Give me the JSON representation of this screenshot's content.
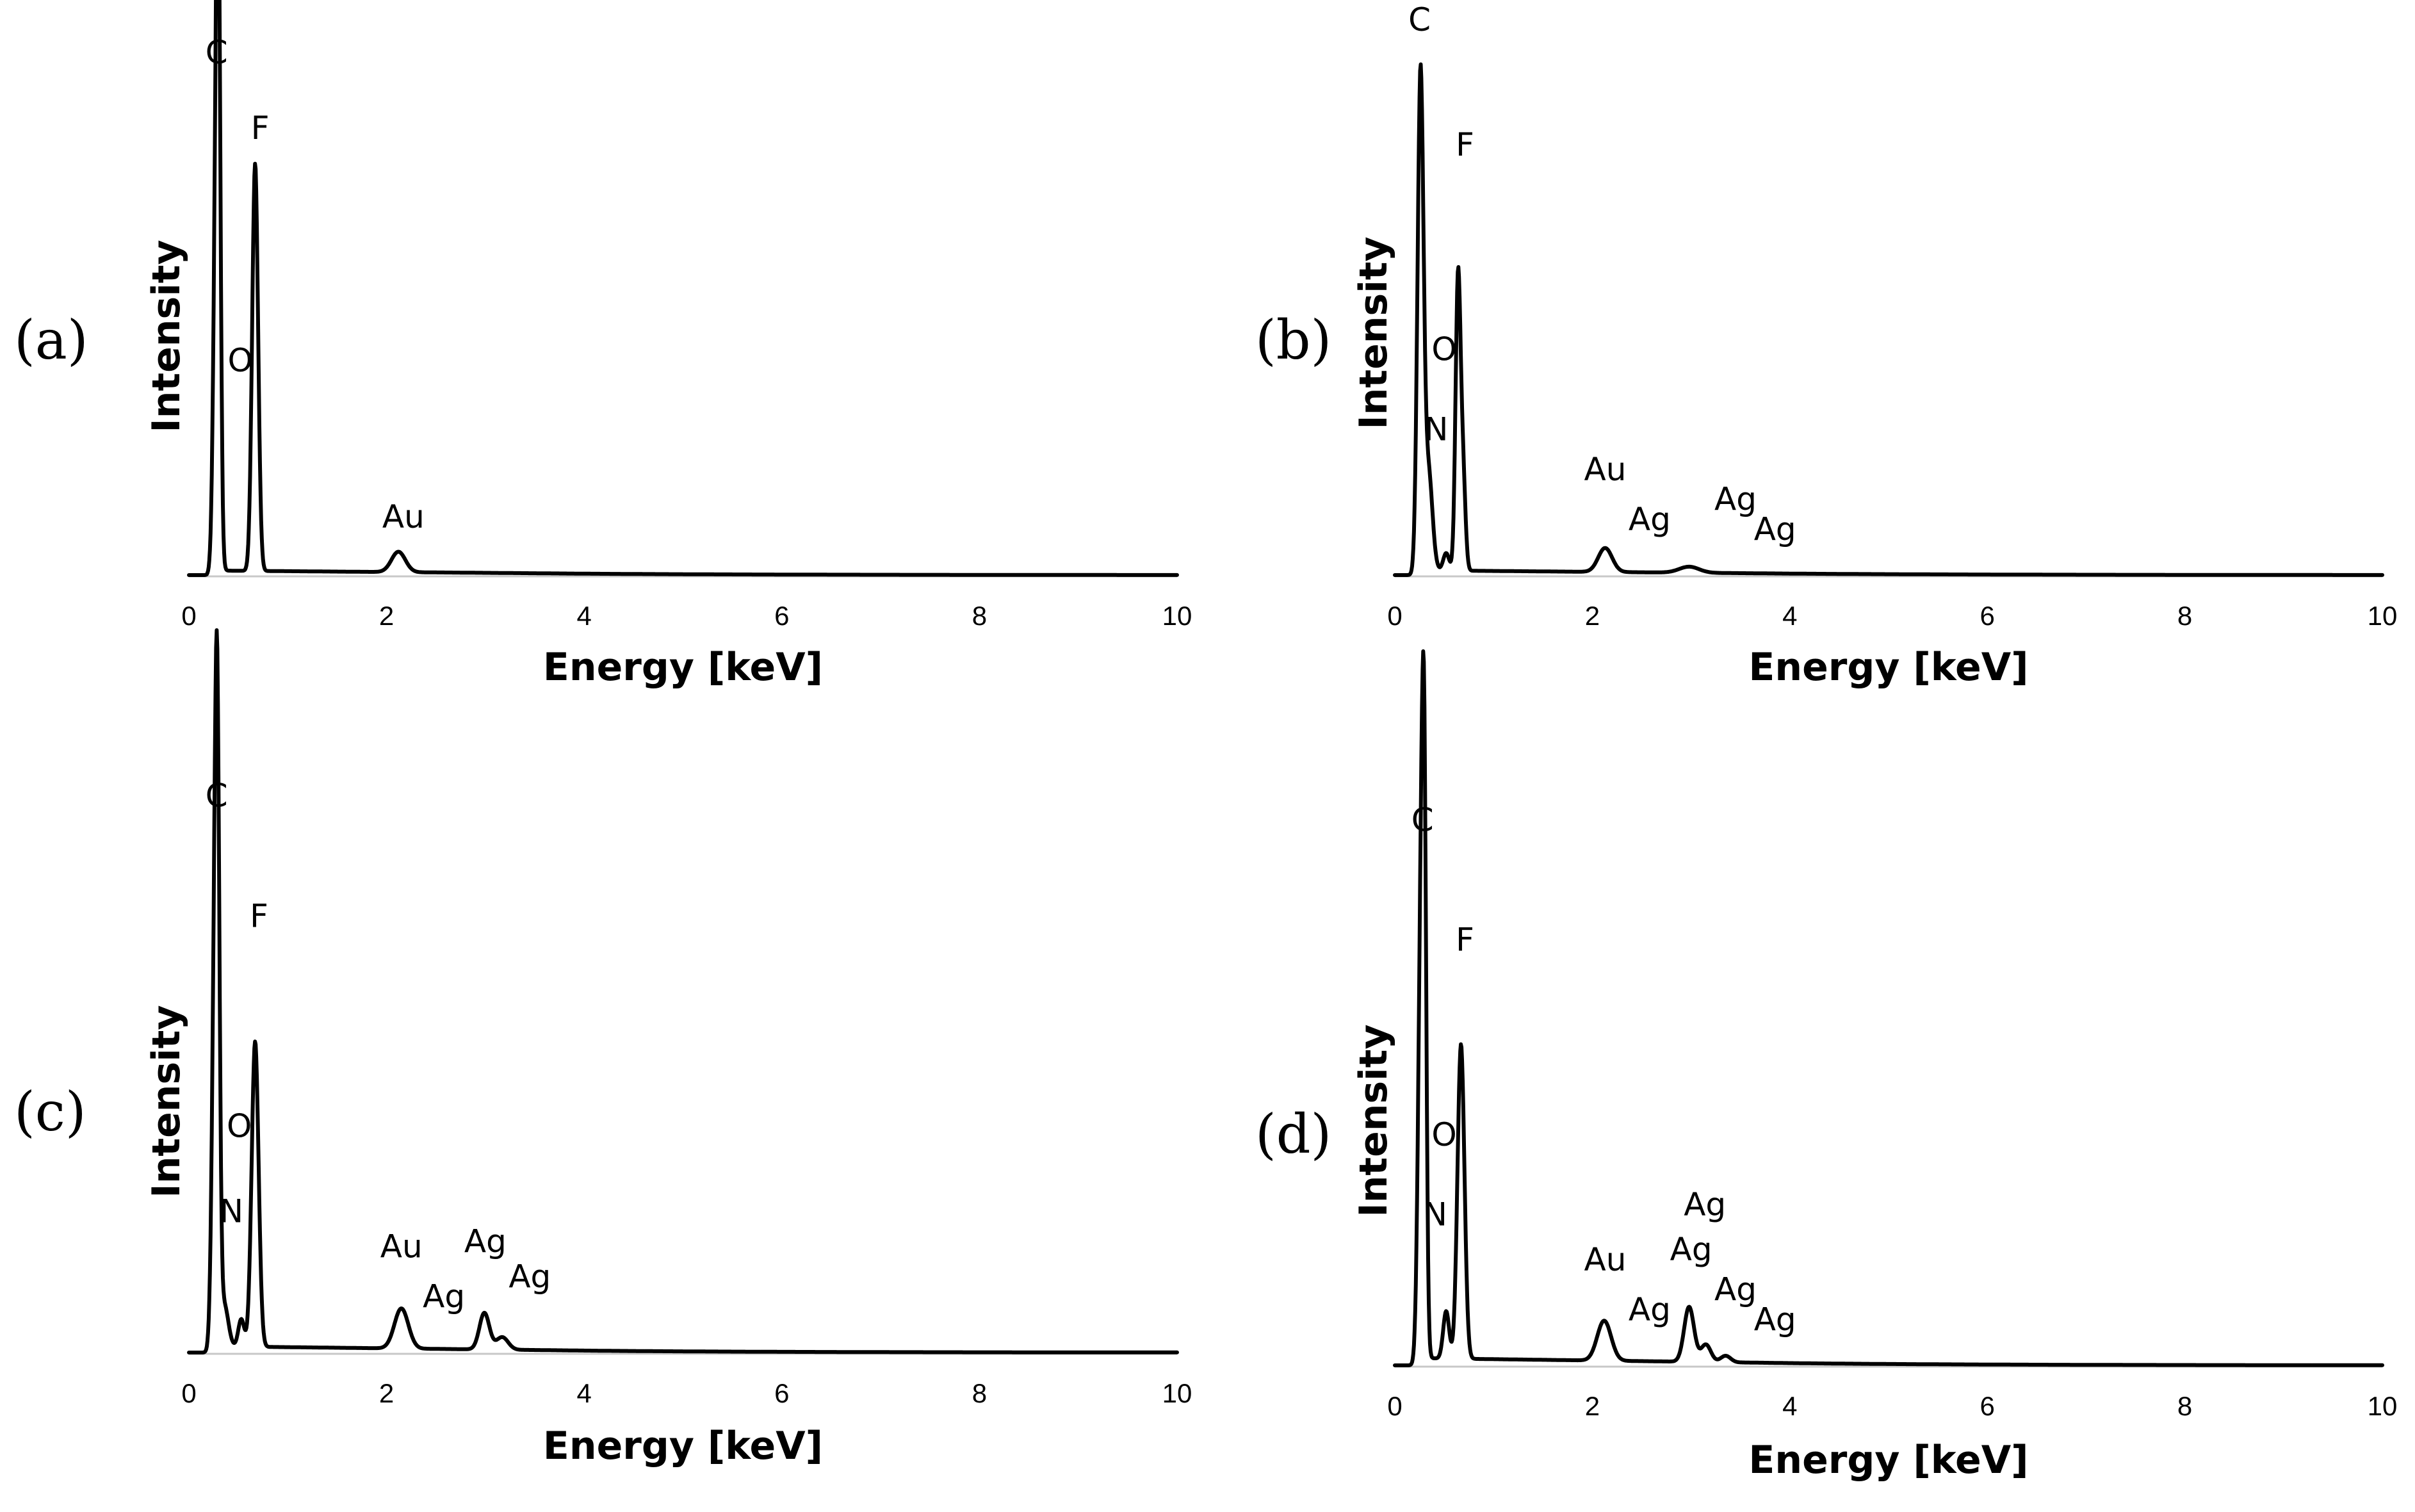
{
  "chart_data": [
    {
      "type": "line",
      "panel_label": "(a)",
      "xlabel": "Energy [keV]",
      "ylabel": "Intensity",
      "xlim": [
        0,
        10
      ],
      "ylim": [
        0,
        100
      ],
      "xticks": [
        "0",
        "2",
        "4",
        "6",
        "8",
        "10"
      ],
      "grid": false,
      "legend": "none",
      "peaks": [
        {
          "x": 0.28,
          "y": 94,
          "w": 0.028
        },
        {
          "x": 0.3,
          "y": 76,
          "w": 0.02
        },
        {
          "x": 0.67,
          "y": 86,
          "w": 0.03
        },
        {
          "x": 2.12,
          "y": 4.3,
          "w": 0.07
        }
      ],
      "baseline": 1.0,
      "baseline_end": 4.0,
      "annotations": [
        {
          "text": "C",
          "x": 0.28,
          "y": 108
        },
        {
          "text": "F",
          "x": 0.72,
          "y": 92
        },
        {
          "text": "O",
          "x": 0.52,
          "y": 43
        },
        {
          "text": "Au",
          "x": 2.17,
          "y": 10
        }
      ]
    },
    {
      "type": "line",
      "panel_label": "(b)",
      "xlabel": "Energy [keV]",
      "ylabel": "Intensity",
      "xlim": [
        0,
        10
      ],
      "ylim": [
        0,
        100
      ],
      "xticks": [
        "0",
        "2",
        "4",
        "6",
        "8",
        "10"
      ],
      "grid": false,
      "legend": "none",
      "peaks": [
        {
          "x": 0.26,
          "y": 99,
          "w": 0.03
        },
        {
          "x": 0.34,
          "y": 20,
          "w": 0.04
        },
        {
          "x": 0.52,
          "y": 3.5,
          "w": 0.03
        },
        {
          "x": 0.64,
          "y": 58,
          "w": 0.025
        },
        {
          "x": 0.69,
          "y": 19,
          "w": 0.025
        },
        {
          "x": 2.13,
          "y": 4.8,
          "w": 0.07
        },
        {
          "x": 2.98,
          "y": 1.2,
          "w": 0.1
        }
      ],
      "baseline": 1.0,
      "baseline_end": 4.0,
      "annotations": [
        {
          "text": "C",
          "x": 0.25,
          "y": 109
        },
        {
          "text": "F",
          "x": 0.71,
          "y": 84
        },
        {
          "text": "O",
          "x": 0.5,
          "y": 43
        },
        {
          "text": "N",
          "x": 0.42,
          "y": 27
        },
        {
          "text": "Au",
          "x": 2.13,
          "y": 19
        },
        {
          "text": "Ag",
          "x": 2.58,
          "y": 9
        },
        {
          "text": "Ag",
          "x": 3.45,
          "y": 13
        },
        {
          "text": "Ag",
          "x": 3.85,
          "y": 7
        }
      ]
    },
    {
      "type": "line",
      "panel_label": "(c)",
      "xlabel": "Energy [keV]",
      "ylabel": "Intensity",
      "xlim": [
        0,
        10
      ],
      "ylim": [
        0,
        100
      ],
      "xticks": [
        "0",
        "2",
        "4",
        "6",
        "8",
        "10"
      ],
      "grid": false,
      "legend": "none",
      "peaks": [
        {
          "x": 0.27,
          "y": 99,
          "w": 0.03
        },
        {
          "x": 0.29,
          "y": 55,
          "w": 0.02
        },
        {
          "x": 0.36,
          "y": 8,
          "w": 0.04
        },
        {
          "x": 0.53,
          "y": 5.5,
          "w": 0.03
        },
        {
          "x": 0.67,
          "y": 61,
          "w": 0.035
        },
        {
          "x": 2.15,
          "y": 8,
          "w": 0.07
        },
        {
          "x": 2.99,
          "y": 7.3,
          "w": 0.05
        },
        {
          "x": 3.17,
          "y": 2.5,
          "w": 0.06
        }
      ],
      "baseline": 1.3,
      "baseline_end": 4.0,
      "annotations": [
        {
          "text": "C",
          "x": 0.28,
          "y": 109
        },
        {
          "text": "F",
          "x": 0.71,
          "y": 85
        },
        {
          "text": "O",
          "x": 0.51,
          "y": 43
        },
        {
          "text": "N",
          "x": 0.43,
          "y": 26
        },
        {
          "text": "Au",
          "x": 2.15,
          "y": 19
        },
        {
          "text": "Ag",
          "x": 2.58,
          "y": 9
        },
        {
          "text": "Ag",
          "x": 3.0,
          "y": 20
        },
        {
          "text": "Ag",
          "x": 3.45,
          "y": 13
        }
      ]
    },
    {
      "type": "line",
      "panel_label": "(d)",
      "xlabel": "Energy [keV]",
      "ylabel": "Intensity",
      "xlim": [
        0,
        10
      ],
      "ylim": [
        0,
        100
      ],
      "xticks": [
        "0",
        "2",
        "4",
        "6",
        "8",
        "10"
      ],
      "grid": false,
      "legend": "none",
      "peaks": [
        {
          "x": 0.27,
          "y": 100,
          "w": 0.03
        },
        {
          "x": 0.3,
          "y": 70,
          "w": 0.02
        },
        {
          "x": 0.52,
          "y": 9.5,
          "w": 0.03
        },
        {
          "x": 0.67,
          "y": 63,
          "w": 0.035
        },
        {
          "x": 2.12,
          "y": 8,
          "w": 0.07
        },
        {
          "x": 2.98,
          "y": 11,
          "w": 0.05
        },
        {
          "x": 3.15,
          "y": 3.5,
          "w": 0.05
        },
        {
          "x": 3.35,
          "y": 1.3,
          "w": 0.05
        }
      ],
      "baseline": 1.5,
      "baseline_end": 4.0,
      "annotations": [
        {
          "text": "C",
          "x": 0.28,
          "y": 107
        },
        {
          "text": "F",
          "x": 0.71,
          "y": 83
        },
        {
          "text": "O",
          "x": 0.5,
          "y": 44
        },
        {
          "text": "N",
          "x": 0.41,
          "y": 28
        },
        {
          "text": "Au",
          "x": 2.13,
          "y": 19
        },
        {
          "text": "Ag",
          "x": 2.58,
          "y": 9
        },
        {
          "text": "Ag",
          "x": 3.0,
          "y": 21
        },
        {
          "text": "Ag",
          "x": 3.14,
          "y": 30
        },
        {
          "text": "Ag",
          "x": 3.45,
          "y": 13
        },
        {
          "text": "Ag",
          "x": 3.85,
          "y": 7
        }
      ]
    }
  ]
}
